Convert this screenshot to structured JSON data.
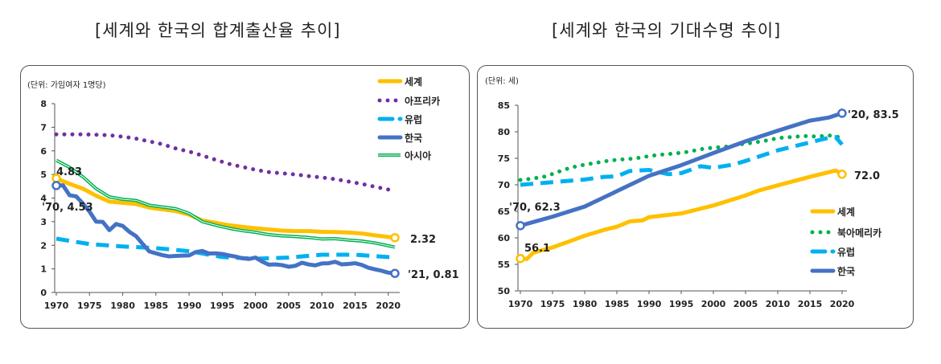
{
  "chart_data": [
    {
      "type": "line",
      "title": "[세계와 한국의 합계출산율 추이]",
      "unit_label": "(단위: 가임여자 1명당)",
      "xlim": [
        1970,
        2021
      ],
      "ylim": [
        0,
        8
      ],
      "x_ticks": [
        1970,
        1975,
        1980,
        1985,
        1990,
        1995,
        2000,
        2005,
        2010,
        2015,
        2020
      ],
      "y_ticks": [
        0,
        1,
        2,
        3,
        4,
        5,
        6,
        7,
        8
      ],
      "grid": false,
      "legend_position": "top-right",
      "series": [
        {
          "name": "세계",
          "color": "#FFC000",
          "style": "solid",
          "x": [
            1970,
            1972,
            1974,
            1976,
            1978,
            1980,
            1982,
            1984,
            1986,
            1988,
            1990,
            1992,
            1994,
            1996,
            1998,
            2000,
            2002,
            2004,
            2006,
            2008,
            2010,
            2012,
            2014,
            2016,
            2018,
            2021
          ],
          "y": [
            4.83,
            4.6,
            4.4,
            4.1,
            3.85,
            3.8,
            3.75,
            3.6,
            3.52,
            3.45,
            3.3,
            3.05,
            2.95,
            2.85,
            2.78,
            2.72,
            2.67,
            2.62,
            2.6,
            2.6,
            2.57,
            2.56,
            2.54,
            2.5,
            2.42,
            2.32
          ]
        },
        {
          "name": "아프리카",
          "color": "#7030A0",
          "style": "dotted",
          "x": [
            1970,
            1972,
            1974,
            1976,
            1978,
            1980,
            1982,
            1984,
            1986,
            1988,
            1990,
            1992,
            1994,
            1996,
            1998,
            2000,
            2002,
            2004,
            2006,
            2008,
            2010,
            2012,
            2014,
            2016,
            2018,
            2021
          ],
          "y": [
            6.7,
            6.7,
            6.7,
            6.68,
            6.66,
            6.6,
            6.52,
            6.4,
            6.28,
            6.1,
            5.97,
            5.8,
            5.62,
            5.45,
            5.32,
            5.2,
            5.1,
            5.05,
            5.0,
            4.93,
            4.87,
            4.8,
            4.7,
            4.6,
            4.48,
            4.3
          ]
        },
        {
          "name": "유럽",
          "color": "#00B0F0",
          "style": "dashed",
          "x": [
            1970,
            1975,
            1980,
            1985,
            1990,
            1995,
            2000,
            2005,
            2010,
            2015,
            2021
          ],
          "y": [
            2.28,
            2.05,
            1.95,
            1.88,
            1.75,
            1.5,
            1.43,
            1.48,
            1.6,
            1.6,
            1.48
          ]
        },
        {
          "name": "한국",
          "color": "#4472C4",
          "style": "solid",
          "x": [
            1970,
            1971,
            1972,
            1973,
            1974,
            1975,
            1976,
            1977,
            1978,
            1979,
            1980,
            1981,
            1982,
            1983,
            1984,
            1985,
            1986,
            1987,
            1988,
            1989,
            1990,
            1991,
            1992,
            1993,
            1994,
            1995,
            1996,
            1997,
            1998,
            1999,
            2000,
            2001,
            2002,
            2003,
            2004,
            2005,
            2006,
            2007,
            2008,
            2009,
            2010,
            2011,
            2012,
            2013,
            2014,
            2015,
            2016,
            2017,
            2018,
            2019,
            2020,
            2021
          ],
          "y": [
            4.53,
            4.54,
            4.12,
            4.07,
            3.77,
            3.43,
            3.0,
            2.99,
            2.64,
            2.9,
            2.82,
            2.57,
            2.39,
            2.06,
            1.74,
            1.66,
            1.58,
            1.53,
            1.55,
            1.56,
            1.57,
            1.71,
            1.76,
            1.65,
            1.66,
            1.63,
            1.57,
            1.52,
            1.45,
            1.42,
            1.48,
            1.31,
            1.18,
            1.19,
            1.16,
            1.09,
            1.13,
            1.26,
            1.19,
            1.15,
            1.23,
            1.24,
            1.3,
            1.19,
            1.21,
            1.24,
            1.17,
            1.05,
            0.98,
            0.92,
            0.84,
            0.81
          ]
        },
        {
          "name": "아시아",
          "color": "#00B050",
          "style": "double",
          "x": [
            1970,
            1972,
            1974,
            1976,
            1978,
            1980,
            1982,
            1984,
            1986,
            1988,
            1990,
            1992,
            1994,
            1996,
            1998,
            2000,
            2002,
            2004,
            2006,
            2008,
            2010,
            2012,
            2014,
            2016,
            2018,
            2021
          ],
          "y": [
            5.6,
            5.3,
            4.9,
            4.4,
            4.05,
            3.95,
            3.9,
            3.7,
            3.62,
            3.55,
            3.35,
            3.0,
            2.85,
            2.72,
            2.62,
            2.55,
            2.45,
            2.4,
            2.37,
            2.33,
            2.27,
            2.28,
            2.22,
            2.18,
            2.1,
            1.92
          ]
        }
      ],
      "annotations": [
        {
          "text": "4.83",
          "x": 1970,
          "y": 4.83,
          "series": "세계"
        },
        {
          "text": "'70, 4.53",
          "x": 1970,
          "y": 4.53,
          "series": "한국"
        },
        {
          "text": "2.32",
          "x": 2021,
          "y": 2.32,
          "series": "세계"
        },
        {
          "text": "'21, 0.81",
          "x": 2021,
          "y": 0.81,
          "series": "한국"
        }
      ]
    },
    {
      "type": "line",
      "title": "[세계와 한국의 기대수명 추이]",
      "unit_label": "(단위: 세)",
      "xlim": [
        1970,
        2020
      ],
      "ylim": [
        50,
        85
      ],
      "x_ticks": [
        1970,
        1975,
        1980,
        1985,
        1990,
        1995,
        2000,
        2005,
        2010,
        2015,
        2020
      ],
      "y_ticks": [
        50,
        55,
        60,
        65,
        70,
        75,
        80,
        85
      ],
      "grid": false,
      "legend_position": "bottom-right",
      "series": [
        {
          "name": "세계",
          "color": "#FFC000",
          "style": "solid",
          "x": [
            1970,
            1971,
            1972,
            1975,
            1978,
            1980,
            1983,
            1985,
            1987,
            1989,
            1990,
            1995,
            2000,
            2005,
            2007,
            2010,
            2015,
            2019,
            2020
          ],
          "y": [
            56.1,
            56.0,
            57.2,
            58.2,
            59.5,
            60.4,
            61.5,
            62.1,
            63.1,
            63.3,
            63.9,
            64.6,
            66.1,
            68.0,
            68.9,
            69.9,
            71.5,
            72.7,
            72.0
          ]
        },
        {
          "name": "북아메리카",
          "color": "#00B050",
          "style": "dotted",
          "x": [
            1970,
            1972,
            1974,
            1976,
            1978,
            1980,
            1982,
            1984,
            1986,
            1988,
            1990,
            1992,
            1994,
            1996,
            1998,
            2000,
            2002,
            2004,
            2006,
            2008,
            2010,
            2012,
            2014,
            2016,
            2018,
            2020
          ],
          "y": [
            70.9,
            71.2,
            71.6,
            72.5,
            73.3,
            73.8,
            74.2,
            74.6,
            74.8,
            75.0,
            75.4,
            75.7,
            75.9,
            76.2,
            76.7,
            77.0,
            77.2,
            77.6,
            77.9,
            78.3,
            78.8,
            79.0,
            79.2,
            79.1,
            79.3,
            78.9
          ]
        },
        {
          "name": "유럽",
          "color": "#00B0F0",
          "style": "dashed",
          "x": [
            1970,
            1975,
            1980,
            1983,
            1985,
            1987,
            1990,
            1993,
            1995,
            1998,
            2000,
            2003,
            2005,
            2010,
            2015,
            2018,
            2019,
            2020
          ],
          "y": [
            70.0,
            70.5,
            71.0,
            71.5,
            71.6,
            72.6,
            72.8,
            72.0,
            72.2,
            73.5,
            73.2,
            73.8,
            74.5,
            76.5,
            78.0,
            78.9,
            79.0,
            77.6
          ]
        },
        {
          "name": "한국",
          "color": "#4472C4",
          "style": "solid",
          "x": [
            1970,
            1975,
            1980,
            1985,
            1990,
            1995,
            2000,
            2005,
            2010,
            2015,
            2018,
            2020
          ],
          "y": [
            62.3,
            64.0,
            65.9,
            68.8,
            71.7,
            73.7,
            76.0,
            78.2,
            80.2,
            82.1,
            82.7,
            83.5
          ]
        }
      ],
      "annotations": [
        {
          "text": "'70, 62.3",
          "x": 1970,
          "y": 62.3,
          "series": "한국"
        },
        {
          "text": "56.1",
          "x": 1970,
          "y": 56.1,
          "series": "세계"
        },
        {
          "text": "'20, 83.5",
          "x": 2020,
          "y": 83.5,
          "series": "한국"
        },
        {
          "text": "72.0",
          "x": 2020,
          "y": 72.0,
          "series": "세계"
        }
      ]
    }
  ]
}
